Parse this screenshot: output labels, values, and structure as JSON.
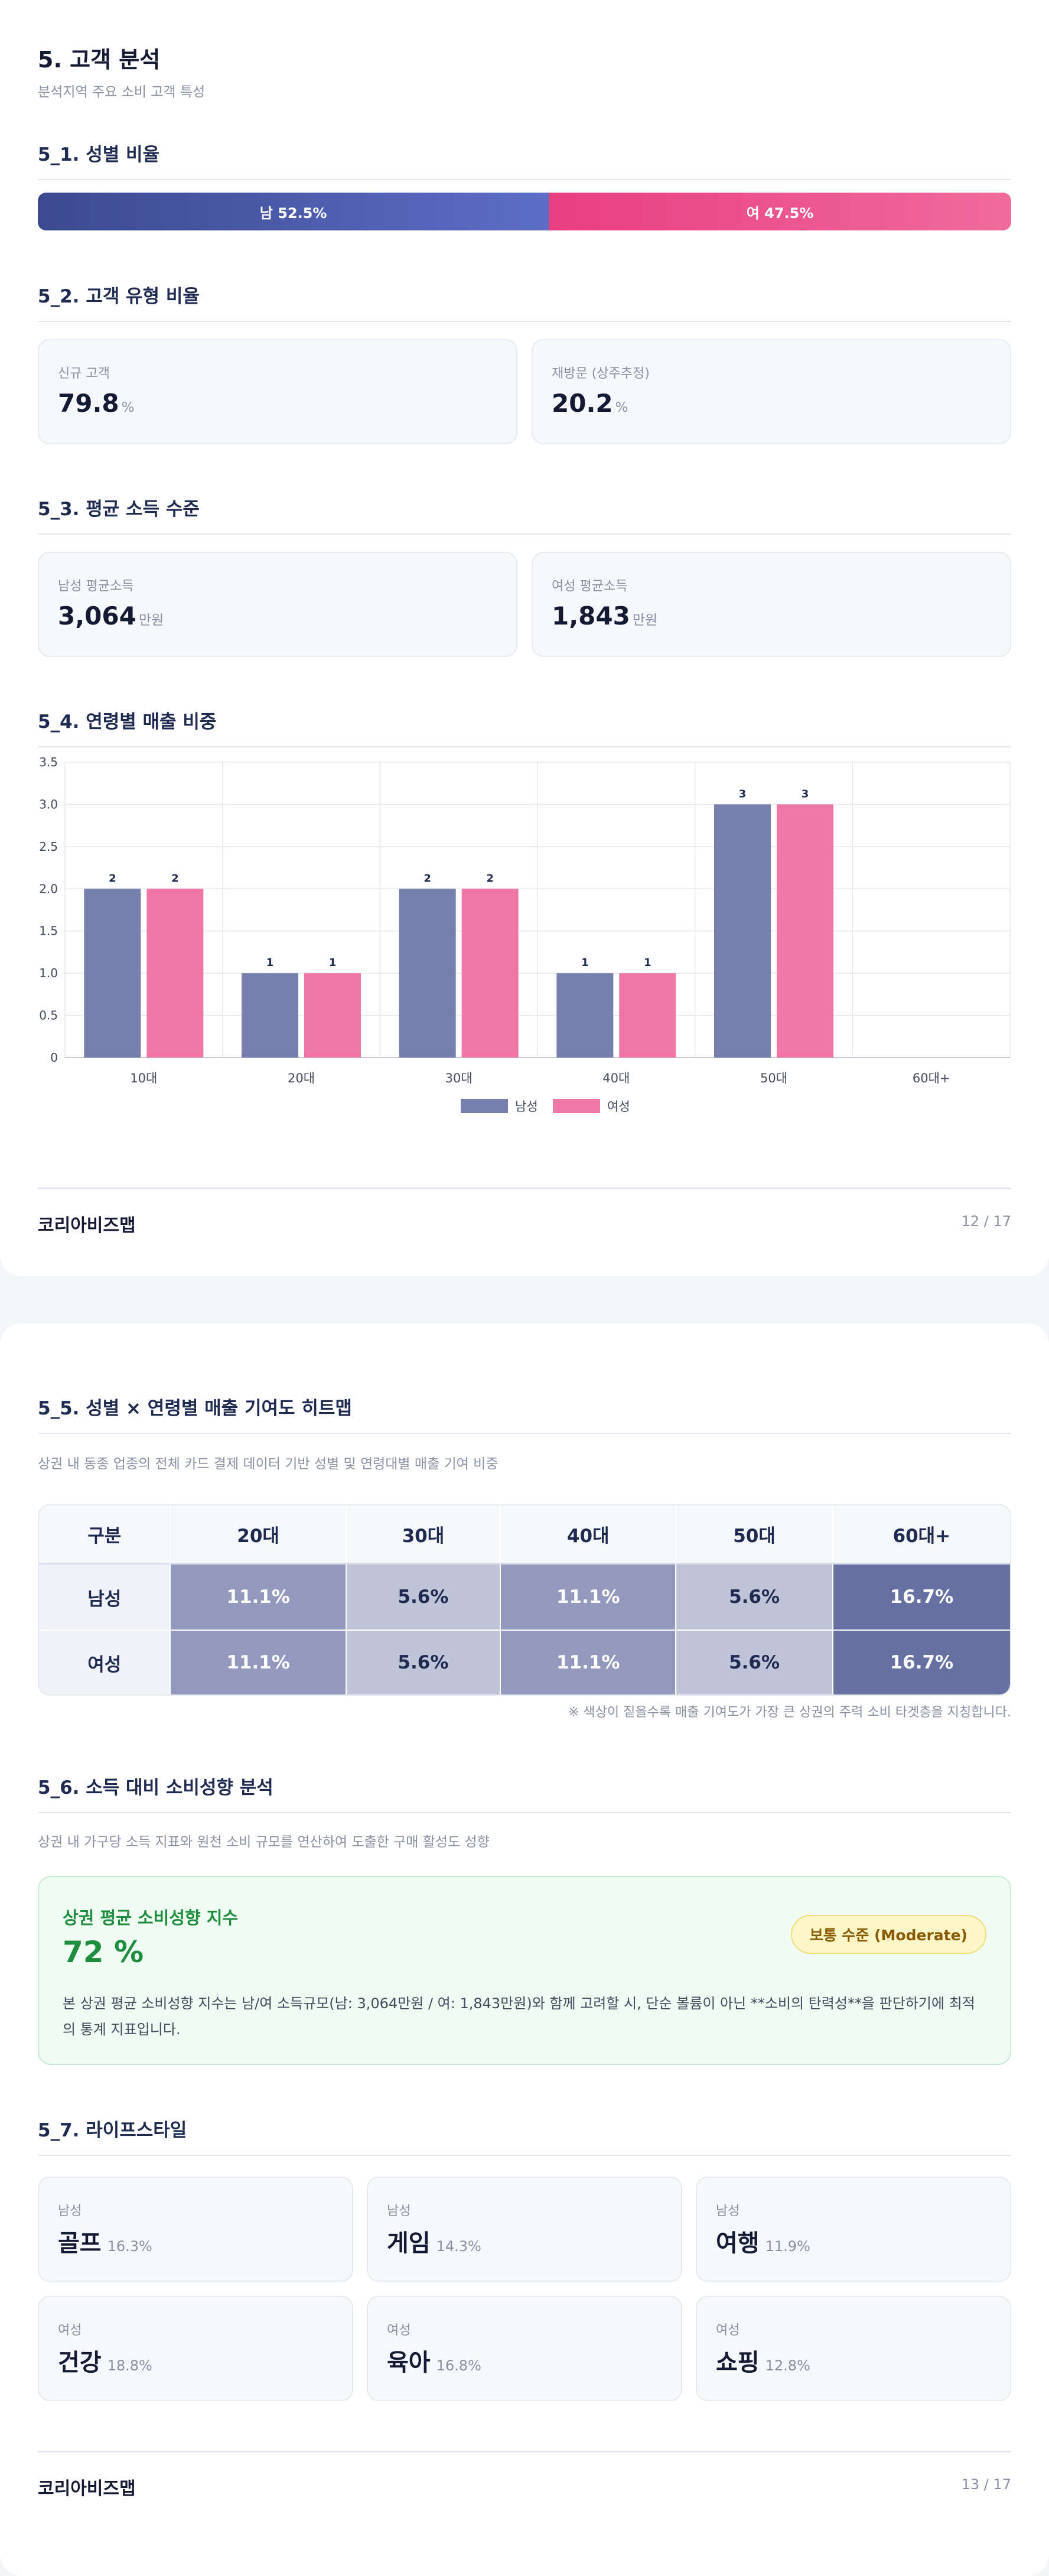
{
  "page1": {
    "title": "5. 고객 분석",
    "subtitle": "분석지역 주요 소비 고객 특성",
    "s1_title": "5_1. 성별 비율",
    "gender": {
      "male_label": "남 52.5%",
      "female_label": "여 47.5%",
      "male_pct": 52.5,
      "female_pct": 47.5
    },
    "s2_title": "5_2. 고객 유형 비율",
    "customer_types": [
      {
        "label": "신규 고객",
        "value": "79.8",
        "unit": "%"
      },
      {
        "label": "재방문 (상주추정)",
        "value": "20.2",
        "unit": "%"
      }
    ],
    "s3_title": "5_3. 평균 소득 수준",
    "income": [
      {
        "label": "남성 평균소득",
        "value": "3,064",
        "unit": "만원"
      },
      {
        "label": "여성 평균소득",
        "value": "1,843",
        "unit": "만원"
      }
    ],
    "s4_title": "5_4. 연령별 매출 비중",
    "footer_brand": "코리아비즈맵",
    "page_no": "12 / 17"
  },
  "chart_data": {
    "type": "bar",
    "categories": [
      "10대",
      "20대",
      "30대",
      "40대",
      "50대",
      "60대+"
    ],
    "series": [
      {
        "name": "남성",
        "values": [
          2,
          1,
          2,
          1,
          3,
          0
        ],
        "labels": [
          "2",
          "1",
          "2",
          "1",
          "3",
          ""
        ],
        "color": "#7780ad"
      },
      {
        "name": "여성",
        "values": [
          2,
          1,
          2,
          1,
          3,
          0
        ],
        "labels": [
          "2",
          "1",
          "2",
          "1",
          "3",
          ""
        ],
        "color": "#ef77a6"
      }
    ],
    "yticks": [
      "0",
      "0.5",
      "1.0",
      "1.5",
      "2.0",
      "2.5",
      "3.0",
      "3.5"
    ],
    "ylim": [
      0,
      3.5
    ],
    "grid": true,
    "legend": "bottom"
  },
  "page2": {
    "s5_title": "5_5. 성별 × 연령별 매출 기여도 히트맵",
    "s5_desc": "상권 내 동종 업종의 전체 카드 결제 데이터 기반 성별 및 연령대별 매출 기여 비중",
    "heatmap": {
      "header": [
        "구분",
        "20대",
        "30대",
        "40대",
        "50대",
        "60대+"
      ],
      "rows": [
        {
          "label": "남성",
          "values": [
            "11.1%",
            "5.6%",
            "11.1%",
            "5.6%",
            "16.7%"
          ]
        },
        {
          "label": "여성",
          "values": [
            "11.1%",
            "5.6%",
            "11.1%",
            "5.6%",
            "16.7%"
          ]
        }
      ],
      "colors": {
        "low": "#c0c4d9",
        "mid": "#9299bc",
        "high": "#6670a3"
      }
    },
    "heatmap_note": "※ 색상이 짙을수록 매출 기여도가 가장 큰 상권의 주력 소비 타겟층을 지칭합니다.",
    "s6_title": "5_6. 소득 대비 소비성향 분석",
    "s6_desc": "상권 내 가구당 소득 지표와 원천 소비 규모를 연산하여 도출한 구매 활성도 성향",
    "propensity": {
      "title": "상권 평균 소비성향 지수",
      "value": "72 %",
      "badge": "보통 수준 (Moderate)",
      "desc": "본 상권 평균 소비성향 지수는 남/여 소득규모(남: 3,064만원 / 여: 1,843만원)와 함께 고려할 시, 단순 볼륨이 아닌 **소비의 탄력성**을 판단하기에 최적의 통계 지표입니다."
    },
    "s7_title": "5_7. 라이프스타일",
    "lifestyle": [
      {
        "gender": "남성",
        "name": "골프",
        "pct": "16.3%"
      },
      {
        "gender": "남성",
        "name": "게임",
        "pct": "14.3%"
      },
      {
        "gender": "남성",
        "name": "여행",
        "pct": "11.9%"
      },
      {
        "gender": "여성",
        "name": "건강",
        "pct": "18.8%"
      },
      {
        "gender": "여성",
        "name": "육아",
        "pct": "16.8%"
      },
      {
        "gender": "여성",
        "name": "쇼핑",
        "pct": "12.8%"
      }
    ],
    "footer_brand": "코리아비즈맵",
    "page_no": "13 / 17"
  }
}
